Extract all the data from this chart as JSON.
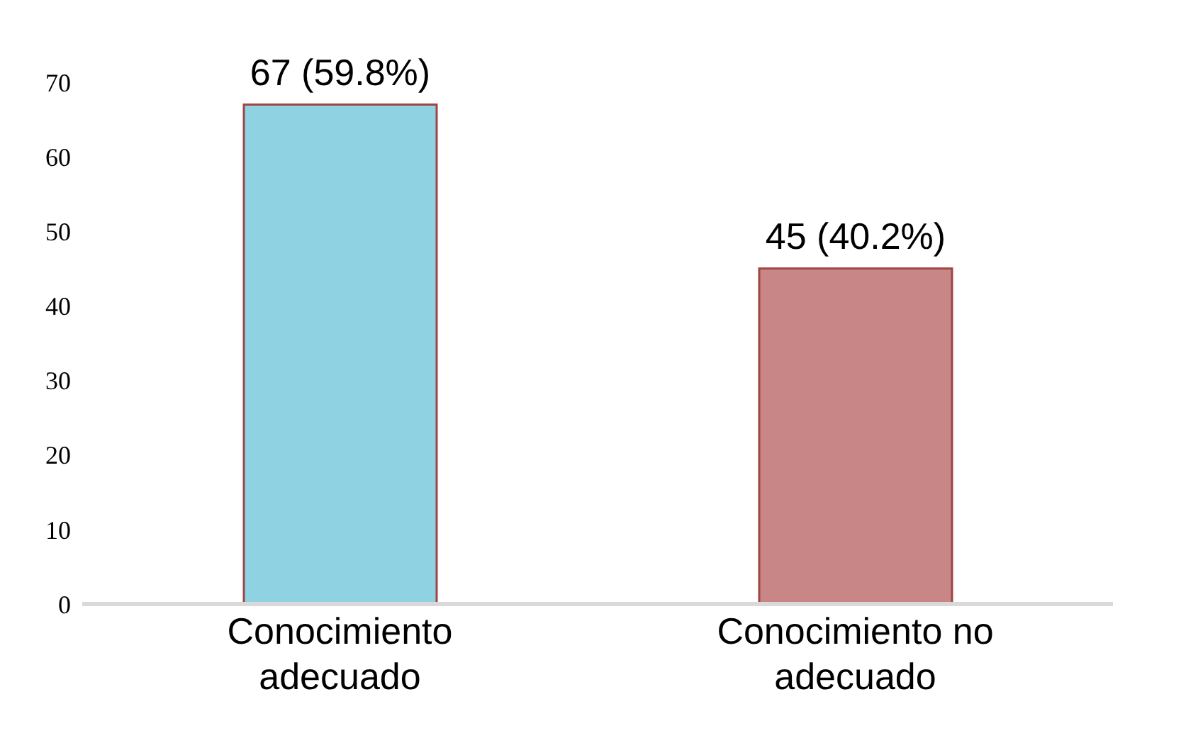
{
  "chart_data": {
    "type": "bar",
    "categories": [
      "Conocimiento adecuado",
      "Conocimiento no adecuado"
    ],
    "values": [
      67,
      45
    ],
    "colors": [
      "#8fd3e3",
      "#c98686"
    ],
    "value_labels": [
      "67 (59.8%)",
      "45 (40.2%)"
    ],
    "ylim": [
      0,
      70
    ],
    "yticks": [
      0,
      10,
      20,
      30,
      40,
      50,
      60,
      70
    ],
    "grid": false,
    "legend": false
  }
}
